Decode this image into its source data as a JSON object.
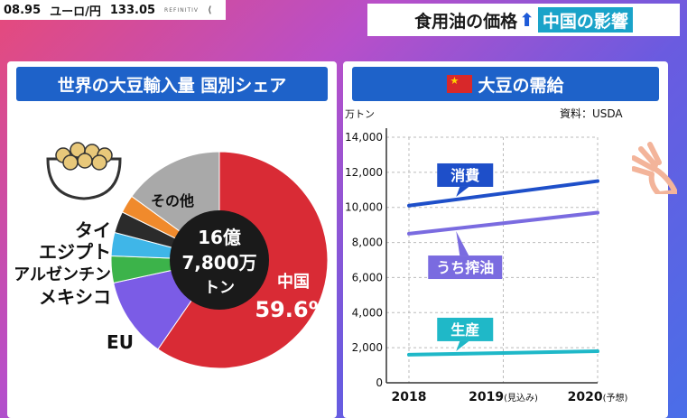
{
  "ticker": {
    "prev_value": "08.95",
    "pair": "ユーロ/円",
    "rate": "133.05",
    "source": "REFINITIV"
  },
  "headline": {
    "text": "食用油の価格",
    "arrow": "⬆",
    "tag": "中国の影響"
  },
  "left_panel": {
    "title": "世界の大豆輸入量 国別シェア"
  },
  "right_panel": {
    "title": "大豆の需給"
  },
  "colors": {
    "china": "#d92b35",
    "eu": "#7b5ce6",
    "mexico": "#3cb34a",
    "argentina": "#3fb6e8",
    "egypt": "#2b2b2b",
    "thailand": "#f08a2c",
    "other": "#a9a9a9",
    "consumption": "#1e4fc9",
    "crushing": "#7a6be0",
    "production": "#1fb8c8"
  },
  "chart_data": [
    {
      "type": "pie",
      "title": "世界の大豆輸入量 国別シェア",
      "center_label": [
        "16億",
        "7,800万",
        "トン"
      ],
      "slices": [
        {
          "label": "中国",
          "value": 59.6,
          "value_label": "59.6%"
        },
        {
          "label": "EU",
          "value": 12.0
        },
        {
          "label": "メキシコ",
          "value": 4.0
        },
        {
          "label": "アルゼンチン",
          "value": 3.5
        },
        {
          "label": "エジプト",
          "value": 3.2
        },
        {
          "label": "タイ",
          "value": 2.7
        },
        {
          "label": "その他",
          "value": 15.0
        }
      ]
    },
    {
      "type": "line",
      "title": "大豆の需給",
      "unit_label": "万トン",
      "source_note": "資料：USDA",
      "x": [
        "2018",
        "2019",
        "2020"
      ],
      "x_tick_labels": [
        "2018",
        "2019(見込み)",
        "2020(予想)"
      ],
      "x_suffix": [
        "",
        "(見込み)",
        "(予想)"
      ],
      "ylim": [
        0,
        14000
      ],
      "y_ticks": [
        "0",
        "2,000",
        "4,000",
        "6,000",
        "8,000",
        "10,000",
        "12,000",
        "14,000"
      ],
      "grid": true,
      "series": [
        {
          "name": "消費",
          "values": [
            10100,
            10800,
            11500
          ]
        },
        {
          "name": "うち搾油",
          "values": [
            8500,
            9100,
            9700
          ]
        },
        {
          "name": "生産",
          "values": [
            1600,
            1700,
            1800
          ]
        }
      ]
    }
  ]
}
